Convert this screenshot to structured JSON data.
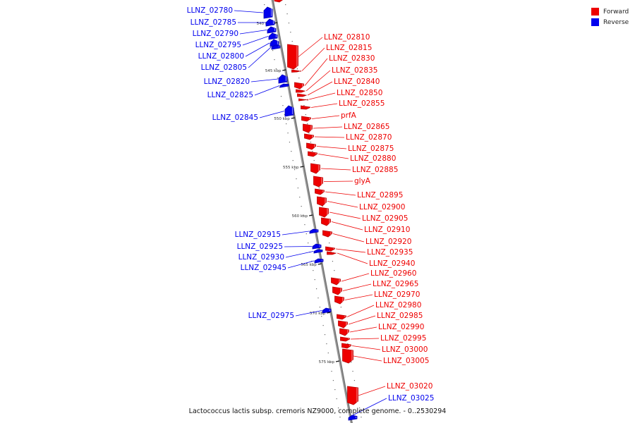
{
  "legend": {
    "forward": "Forward",
    "reverse": "Reverse"
  },
  "colors": {
    "forward": "#ee0000",
    "reverse": "#0000ee",
    "axis": "#777777"
  },
  "caption": "Lactococcus lactis subsp. cremoris NZ9000, complete genome. - 0..2530294",
  "ticks": [
    {
      "label": "540 kbp",
      "kbp": 540
    },
    {
      "label": "545 kbp",
      "kbp": 545
    },
    {
      "label": "550 kbp",
      "kbp": 550
    },
    {
      "label": "555 kbp",
      "kbp": 555
    },
    {
      "label": "560 kbp",
      "kbp": 560
    },
    {
      "label": "565 kbp",
      "kbp": 565
    },
    {
      "label": "570 kbp",
      "kbp": 570
    },
    {
      "label": "575 kbp",
      "kbp": 575
    }
  ],
  "reverse_genes": [
    "LLNZ_02780",
    "LLNZ_02785",
    "LLNZ_02790",
    "LLNZ_02795",
    "LLNZ_02800",
    "LLNZ_02805",
    "LLNZ_02820",
    "LLNZ_02825",
    "LLNZ_02845",
    "LLNZ_02915",
    "LLNZ_02925",
    "LLNZ_02930",
    "LLNZ_02945",
    "LLNZ_02975",
    "LLNZ_03025"
  ],
  "forward_genes": [
    "LLNZ_02810",
    "LLNZ_02815",
    "LLNZ_02830",
    "LLNZ_02835",
    "LLNZ_02840",
    "LLNZ_02850",
    "LLNZ_02855",
    "prfA",
    "LLNZ_02865",
    "LLNZ_02870",
    "LLNZ_02875",
    "LLNZ_02880",
    "LLNZ_02885",
    "glyA",
    "LLNZ_02895",
    "LLNZ_02900",
    "LLNZ_02905",
    "LLNZ_02910",
    "LLNZ_02920",
    "LLNZ_02935",
    "LLNZ_02940",
    "LLNZ_02960",
    "LLNZ_02965",
    "LLNZ_02970",
    "LLNZ_02980",
    "LLNZ_02985",
    "LLNZ_02990",
    "LLNZ_02995",
    "LLNZ_03000",
    "LLNZ_03005",
    "LLNZ_03020"
  ]
}
